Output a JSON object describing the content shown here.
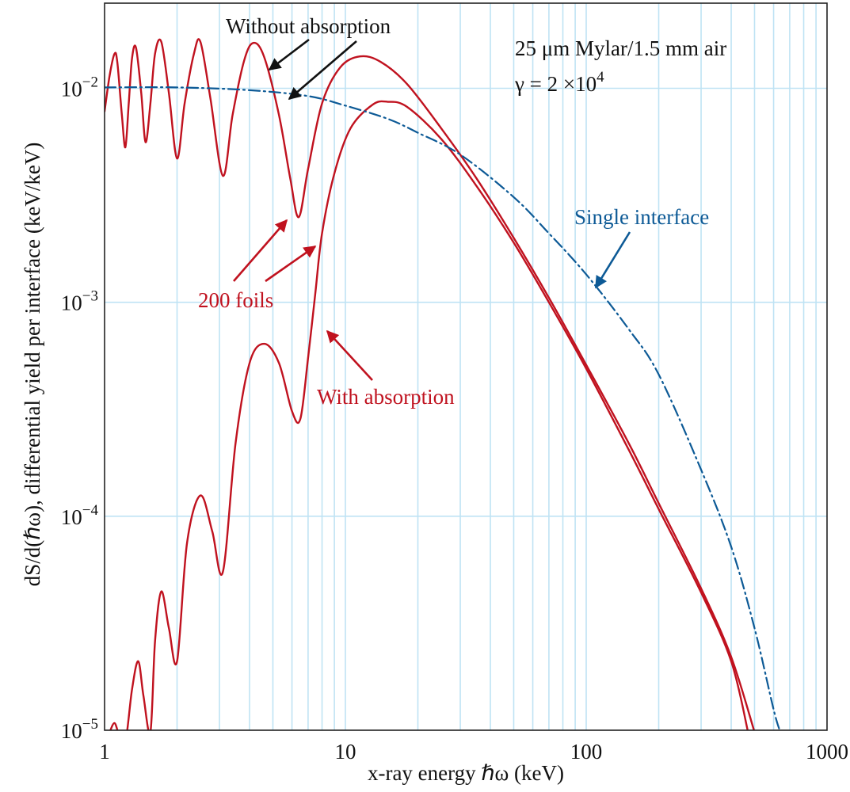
{
  "chart_data": {
    "type": "line",
    "x_scale": "log",
    "y_scale": "log",
    "xlim": [
      1,
      1000
    ],
    "ylim": [
      1e-05,
      0.025
    ],
    "xlabel": "x-ray energy ℏω (keV)",
    "ylabel": "dS/d(ℏω), differential yield per interface (keV/keV)",
    "x_ticks": [
      {
        "value": 1,
        "label": "1"
      },
      {
        "value": 10,
        "label": "10"
      },
      {
        "value": 100,
        "label": "100"
      },
      {
        "value": 1000,
        "label": "1000"
      }
    ],
    "y_ticks": [
      {
        "value": 0.01,
        "base": "10",
        "exp": "−2"
      },
      {
        "value": 0.001,
        "base": "10",
        "exp": "−3"
      },
      {
        "value": 0.0001,
        "base": "10",
        "exp": "−4"
      },
      {
        "value": 1e-05,
        "base": "10",
        "exp": "−5"
      }
    ],
    "grid": true,
    "series": [
      {
        "label": "Without absorption",
        "color": "#c0121f",
        "style": "solid",
        "points": [
          [
            1.0,
            0.0078
          ],
          [
            1.05,
            0.0115
          ],
          [
            1.1,
            0.0145
          ],
          [
            1.13,
            0.0132
          ],
          [
            1.18,
            0.0075
          ],
          [
            1.22,
            0.0053
          ],
          [
            1.26,
            0.0085
          ],
          [
            1.3,
            0.0138
          ],
          [
            1.35,
            0.0155
          ],
          [
            1.42,
            0.0095
          ],
          [
            1.48,
            0.0056
          ],
          [
            1.55,
            0.0085
          ],
          [
            1.62,
            0.0145
          ],
          [
            1.72,
            0.0165
          ],
          [
            1.85,
            0.0095
          ],
          [
            2.0,
            0.0047
          ],
          [
            2.15,
            0.0085
          ],
          [
            2.35,
            0.0145
          ],
          [
            2.5,
            0.0165
          ],
          [
            2.75,
            0.009
          ],
          [
            3.1,
            0.0039
          ],
          [
            3.4,
            0.0075
          ],
          [
            3.8,
            0.0135
          ],
          [
            4.15,
            0.0163
          ],
          [
            4.6,
            0.014
          ],
          [
            5.3,
            0.0075
          ],
          [
            5.9,
            0.0038
          ],
          [
            6.4,
            0.0025
          ],
          [
            7.0,
            0.0042
          ],
          [
            8.0,
            0.0085
          ],
          [
            9.5,
            0.0125
          ],
          [
            11.5,
            0.0141
          ],
          [
            14.0,
            0.0133
          ],
          [
            18.0,
            0.0105
          ],
          [
            25.0,
            0.0065
          ],
          [
            35.0,
            0.0038
          ],
          [
            50.0,
            0.002
          ],
          [
            70.0,
            0.00105
          ],
          [
            100.0,
            0.00051
          ],
          [
            150.0,
            0.00022
          ],
          [
            200.0,
            0.000115
          ],
          [
            300.0,
            4.6e-05
          ],
          [
            400.0,
            2.2e-05
          ],
          [
            500.0,
            9.8e-06
          ]
        ]
      },
      {
        "label": "With absorption",
        "color": "#c0121f",
        "style": "solid",
        "points": [
          [
            1.05,
            9.8e-06
          ],
          [
            1.1,
            1.08e-05
          ],
          [
            1.15,
            9.5e-06
          ],
          [
            1.22,
            8.8e-06
          ],
          [
            1.3,
            1.55e-05
          ],
          [
            1.38,
            2.1e-05
          ],
          [
            1.45,
            1.45e-05
          ],
          [
            1.55,
            9.8e-06
          ],
          [
            1.62,
            2.6e-05
          ],
          [
            1.72,
            4.45e-05
          ],
          [
            1.85,
            3e-05
          ],
          [
            2.0,
            2.1e-05
          ],
          [
            2.2,
            7.5e-05
          ],
          [
            2.5,
            0.000125
          ],
          [
            2.8,
            8.5e-05
          ],
          [
            3.1,
            5.5e-05
          ],
          [
            3.5,
            0.00022
          ],
          [
            4.0,
            0.00052
          ],
          [
            4.6,
            0.00064
          ],
          [
            5.3,
            0.00052
          ],
          [
            6.0,
            0.00031
          ],
          [
            6.5,
            0.000285
          ],
          [
            7.0,
            0.00055
          ],
          [
            7.5,
            0.0011
          ],
          [
            8.0,
            0.0021
          ],
          [
            9.0,
            0.004
          ],
          [
            10.5,
            0.0065
          ],
          [
            13.0,
            0.0084
          ],
          [
            15.0,
            0.00865
          ],
          [
            18.0,
            0.0082
          ],
          [
            25.0,
            0.0058
          ],
          [
            35.0,
            0.0035
          ],
          [
            50.0,
            0.0019
          ],
          [
            70.0,
            0.001
          ],
          [
            100.0,
            0.00049
          ],
          [
            150.0,
            0.000205
          ],
          [
            200.0,
            0.000108
          ],
          [
            300.0,
            4.4e-05
          ],
          [
            400.0,
            2.1e-05
          ],
          [
            470.0,
            9.8e-06
          ]
        ]
      },
      {
        "label": "Single interface",
        "color": "#0d5a96",
        "style": "dashdot",
        "points": [
          [
            1.0,
            0.0101
          ],
          [
            2.0,
            0.0101
          ],
          [
            4.0,
            0.0098
          ],
          [
            7.0,
            0.0092
          ],
          [
            10.0,
            0.0083
          ],
          [
            15.0,
            0.0072
          ],
          [
            20.0,
            0.0062
          ],
          [
            30.0,
            0.0049
          ],
          [
            50.0,
            0.0031
          ],
          [
            70.0,
            0.0021
          ],
          [
            100.0,
            0.00135
          ],
          [
            150.0,
            0.00075
          ],
          [
            200.0,
            0.00046
          ],
          [
            300.0,
            0.000165
          ],
          [
            400.0,
            7.2e-05
          ],
          [
            500.0,
            3e-05
          ],
          [
            600.0,
            1.25e-05
          ],
          [
            640.0,
            9.8e-06
          ]
        ]
      }
    ],
    "annotations": [
      {
        "text": "Without absorption",
        "color": "black"
      },
      {
        "text": "25 μm Mylar/1.5 mm air",
        "color": "black"
      },
      {
        "text_base": "γ = 2 ×10",
        "text_exp": "4",
        "color": "black"
      },
      {
        "text": "Single interface",
        "color": "blue"
      },
      {
        "text": "200 foils",
        "color": "red"
      },
      {
        "text": "With absorption",
        "color": "red"
      }
    ]
  }
}
